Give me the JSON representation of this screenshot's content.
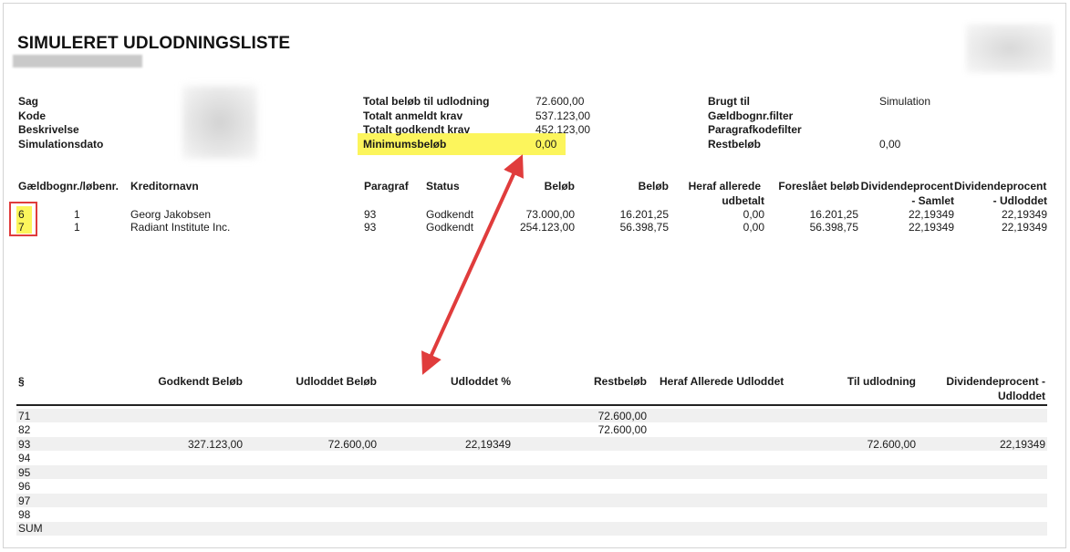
{
  "report": {
    "title": "SIMULERET UDLODNINGSLISTE"
  },
  "info_left": {
    "labels": [
      "Sag",
      "Kode",
      "Beskrivelse",
      "Simulationsdato"
    ]
  },
  "info_mid": {
    "rows": [
      {
        "label": "Total beløb til udlodning",
        "value": "72.600,00"
      },
      {
        "label": "Totalt anmeldt krav",
        "value": "537.123,00"
      },
      {
        "label": "Totalt godkendt krav",
        "value": "452.123,00"
      },
      {
        "label": "Minimumsbeløb",
        "value": "0,00"
      }
    ]
  },
  "info_right": {
    "rows": [
      {
        "label": "Brugt til",
        "value": "Simulation"
      },
      {
        "label": "Gældbognr.filter",
        "value": ""
      },
      {
        "label": "Paragrafkodefilter",
        "value": ""
      },
      {
        "label": "Restbeløb",
        "value": "0,00"
      }
    ]
  },
  "creditor_table": {
    "headers": {
      "gaeld": "Gældbognr./løbenr.",
      "kreditor": "Kreditornavn",
      "paragraf": "Paragraf",
      "status": "Status",
      "belob1": "Beløb",
      "belob2": "Beløb",
      "heraf_1": "Heraf allerede",
      "heraf_2": "udbetalt",
      "foreslaet": "Foreslået beløb",
      "divsam_1": "Dividendeprocent",
      "divsam_2": "- Samlet",
      "divudl_1": "Dividendeprocent",
      "divudl_2": "- Udloddet"
    },
    "rows": [
      {
        "nr": "6",
        "lob": "1",
        "name": "Georg Jakobsen",
        "paragraf": "93",
        "status": "Godkendt",
        "belob1": "73.000,00",
        "belob2": "16.201,25",
        "heraf": "0,00",
        "foreslaet": "16.201,25",
        "divsam": "22,19349",
        "divudl": "22,19349"
      },
      {
        "nr": "7",
        "lob": "1",
        "name": "Radiant Institute Inc.",
        "paragraf": "93",
        "status": "Godkendt",
        "belob1": "254.123,00",
        "belob2": "56.398,75",
        "heraf": "0,00",
        "foreslaet": "56.398,75",
        "divsam": "22,19349",
        "divudl": "22,19349"
      }
    ]
  },
  "summary_table": {
    "headers": {
      "paragraph": "§",
      "godkendt": "Godkendt Beløb",
      "udloddet": "Udloddet Beløb",
      "udloddet_pct": "Udloddet %",
      "rest": "Restbeløb",
      "heraf": "Heraf Allerede Udloddet",
      "til": "Til udlodning",
      "div_1": "Dividendeprocent -",
      "div_2": "Udloddet"
    },
    "rows": [
      {
        "p": "71",
        "godkendt": "",
        "udloddet": "",
        "pct": "",
        "rest": "72.600,00",
        "heraf": "",
        "til": "",
        "div": ""
      },
      {
        "p": "82",
        "godkendt": "",
        "udloddet": "",
        "pct": "",
        "rest": "72.600,00",
        "heraf": "",
        "til": "",
        "div": ""
      },
      {
        "p": "93",
        "godkendt": "327.123,00",
        "udloddet": "72.600,00",
        "pct": "22,19349",
        "rest": "",
        "heraf": "",
        "til": "72.600,00",
        "div": "22,19349"
      },
      {
        "p": "94",
        "godkendt": "",
        "udloddet": "",
        "pct": "",
        "rest": "",
        "heraf": "",
        "til": "",
        "div": ""
      },
      {
        "p": "95",
        "godkendt": "",
        "udloddet": "",
        "pct": "",
        "rest": "",
        "heraf": "",
        "til": "",
        "div": ""
      },
      {
        "p": "96",
        "godkendt": "",
        "udloddet": "",
        "pct": "",
        "rest": "",
        "heraf": "",
        "til": "",
        "div": ""
      },
      {
        "p": "97",
        "godkendt": "",
        "udloddet": "",
        "pct": "",
        "rest": "",
        "heraf": "",
        "til": "",
        "div": ""
      },
      {
        "p": "98",
        "godkendt": "",
        "udloddet": "",
        "pct": "",
        "rest": "",
        "heraf": "",
        "til": "",
        "div": ""
      },
      {
        "p": "SUM",
        "godkendt": "",
        "udloddet": "",
        "pct": "",
        "rest": "",
        "heraf": "",
        "til": "",
        "div": ""
      }
    ]
  },
  "annotations": {
    "highlight_color": "#fcf55c",
    "box_color": "#e03c3c",
    "arrow_color": "#e03c3c"
  }
}
